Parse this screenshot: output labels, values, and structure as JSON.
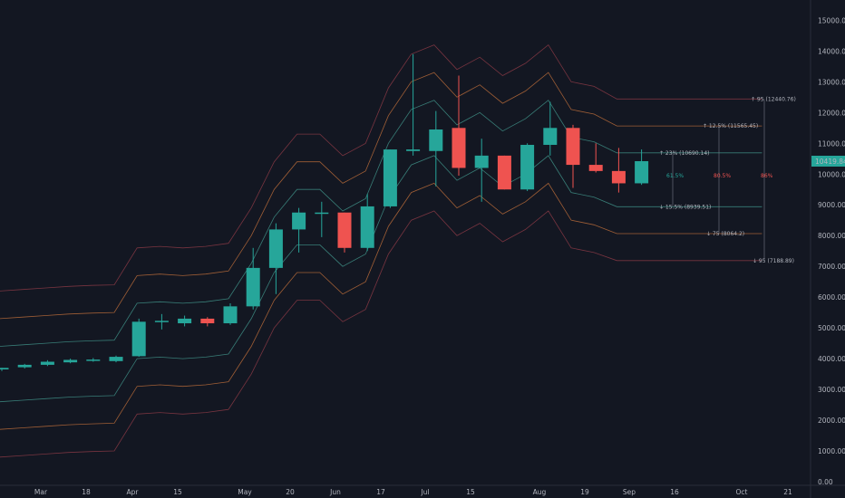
{
  "colors": {
    "background": "#131722",
    "up": "#26a69a",
    "down": "#ef5350",
    "axis_text": "#b2b5be",
    "band_outer": "#8a3a45",
    "band_mid": "#b86b3a",
    "band_inner": "#3f8f86",
    "price_tag_bg": "#26a69a"
  },
  "price_axis": {
    "ticks": [
      "0.00",
      "1000.00",
      "2000.00",
      "3000.00",
      "4000.00",
      "5000.00",
      "6000.00",
      "7000.00",
      "8000.00",
      "9000.00",
      "10000.00",
      "11000.00",
      "12000.00",
      "13000.00",
      "14000.00",
      "15000.00"
    ],
    "current_price_label": "10419.84"
  },
  "time_axis": {
    "labels": [
      "Mar",
      "18",
      "Apr",
      "15",
      "May",
      "20",
      "Jun",
      "17",
      "Jul",
      "15",
      "Aug",
      "19",
      "Sep",
      "16",
      "Oct",
      "21"
    ]
  },
  "annotations": {
    "upper_95": "95 (12440.76)",
    "upper_87_5": "12.5% (11565.45)",
    "upper_77": "23% (10690.14)",
    "lower_77": "15.5% (8939.51)",
    "lower_87_5": "75 (8064.2)",
    "lower_95": "95 (7188.89)",
    "pct_61_5": "61.5%",
    "pct_80_5": "80.5%",
    "pct_86": "86%"
  },
  "chart_data": {
    "type": "candlestick",
    "title": "",
    "ylim": [
      0,
      15600
    ],
    "grid": false,
    "x_labels": [
      "Mar",
      "18",
      "Apr",
      "15",
      "May",
      "20",
      "Jun",
      "17",
      "Jul",
      "15",
      "Aug",
      "19",
      "Sep",
      "16",
      "Oct",
      "21"
    ],
    "candles": [
      {
        "o": 3650,
        "h": 3700,
        "l": 3600,
        "c": 3700
      },
      {
        "o": 3720,
        "h": 3830,
        "l": 3680,
        "c": 3800
      },
      {
        "o": 3800,
        "h": 3950,
        "l": 3760,
        "c": 3900
      },
      {
        "o": 3880,
        "h": 4000,
        "l": 3850,
        "c": 3960
      },
      {
        "o": 3950,
        "h": 4020,
        "l": 3900,
        "c": 3970
      },
      {
        "o": 3920,
        "h": 4100,
        "l": 3880,
        "c": 4060
      },
      {
        "o": 4080,
        "h": 5300,
        "l": 4060,
        "c": 5200
      },
      {
        "o": 5200,
        "h": 5450,
        "l": 4950,
        "c": 5230
      },
      {
        "o": 5150,
        "h": 5400,
        "l": 5050,
        "c": 5300
      },
      {
        "o": 5300,
        "h": 5350,
        "l": 5050,
        "c": 5150
      },
      {
        "o": 5150,
        "h": 5800,
        "l": 5100,
        "c": 5700
      },
      {
        "o": 5700,
        "h": 7600,
        "l": 5600,
        "c": 6950
      },
      {
        "o": 6950,
        "h": 8400,
        "l": 6100,
        "c": 8200
      },
      {
        "o": 8200,
        "h": 8900,
        "l": 7450,
        "c": 8750
      },
      {
        "o": 8750,
        "h": 9100,
        "l": 7950,
        "c": 8750
      },
      {
        "o": 8750,
        "h": 8750,
        "l": 7450,
        "c": 7600
      },
      {
        "o": 7600,
        "h": 9350,
        "l": 7500,
        "c": 8950
      },
      {
        "o": 8950,
        "h": 10800,
        "l": 8900,
        "c": 10800
      },
      {
        "o": 10750,
        "h": 13900,
        "l": 10600,
        "c": 10800
      },
      {
        "o": 10750,
        "h": 12050,
        "l": 9600,
        "c": 11450
      },
      {
        "o": 11500,
        "h": 13200,
        "l": 9950,
        "c": 10200
      },
      {
        "o": 10200,
        "h": 11150,
        "l": 9100,
        "c": 10600
      },
      {
        "o": 10600,
        "h": 10600,
        "l": 9500,
        "c": 9500
      },
      {
        "o": 9500,
        "h": 11000,
        "l": 9450,
        "c": 10950
      },
      {
        "o": 10950,
        "h": 12350,
        "l": 10600,
        "c": 11500
      },
      {
        "o": 11500,
        "h": 11600,
        "l": 9550,
        "c": 10300
      },
      {
        "o": 10300,
        "h": 11000,
        "l": 10050,
        "c": 10100
      },
      {
        "o": 10100,
        "h": 10850,
        "l": 9400,
        "c": 9700
      },
      {
        "o": 9700,
        "h": 10800,
        "l": 9650,
        "c": 10419.84
      }
    ],
    "bands": {
      "upper_3": [
        6200,
        6250,
        6300,
        6350,
        6380,
        6400,
        7600,
        7650,
        7600,
        7650,
        7750,
        8900,
        10400,
        11300,
        11300,
        10600,
        11000,
        12800,
        13900,
        14200,
        13400,
        13800,
        13200,
        13600,
        14200,
        13000,
        12850,
        12440.76,
        12440.76,
        12440.76,
        12440.76,
        12440.76
      ],
      "upper_2": [
        5300,
        5350,
        5400,
        5450,
        5480,
        5500,
        6700,
        6750,
        6700,
        6750,
        6850,
        8000,
        9500,
        10400,
        10400,
        9700,
        10100,
        11900,
        13000,
        13300,
        12500,
        12900,
        12300,
        12700,
        13300,
        12100,
        11950,
        11565.45,
        11565.45,
        11565.45,
        11565.45,
        11565.45
      ],
      "upper_1": [
        4400,
        4450,
        4500,
        4550,
        4580,
        4600,
        5800,
        5850,
        5800,
        5850,
        5950,
        7100,
        8600,
        9500,
        9500,
        8800,
        9200,
        11000,
        12100,
        12400,
        11600,
        12000,
        11400,
        11800,
        12400,
        11200,
        11050,
        10690.14,
        10690.14,
        10690.14,
        10690.14,
        10690.14
      ],
      "lower_1": [
        2600,
        2650,
        2700,
        2750,
        2780,
        2800,
        4000,
        4050,
        4000,
        4050,
        4150,
        5300,
        6800,
        7700,
        7700,
        7000,
        7400,
        9200,
        10300,
        10600,
        9800,
        10200,
        9600,
        10000,
        10600,
        9400,
        9250,
        8939.51,
        8939.51,
        8939.51,
        8939.51,
        8939.51
      ],
      "lower_2": [
        1700,
        1750,
        1800,
        1850,
        1880,
        1900,
        3100,
        3150,
        3100,
        3150,
        3250,
        4400,
        5900,
        6800,
        6800,
        6100,
        6500,
        8300,
        9400,
        9700,
        8900,
        9300,
        8700,
        9100,
        9700,
        8500,
        8350,
        8064.2,
        8064.2,
        8064.2,
        8064.2,
        8064.2
      ],
      "lower_3": [
        800,
        850,
        900,
        950,
        980,
        1000,
        2200,
        2250,
        2200,
        2250,
        2350,
        3500,
        5000,
        5900,
        5900,
        5200,
        5600,
        7400,
        8500,
        8800,
        8000,
        8400,
        7800,
        8200,
        8800,
        7600,
        7450,
        7188.89,
        7188.89,
        7188.89,
        7188.89,
        7188.89
      ]
    }
  }
}
